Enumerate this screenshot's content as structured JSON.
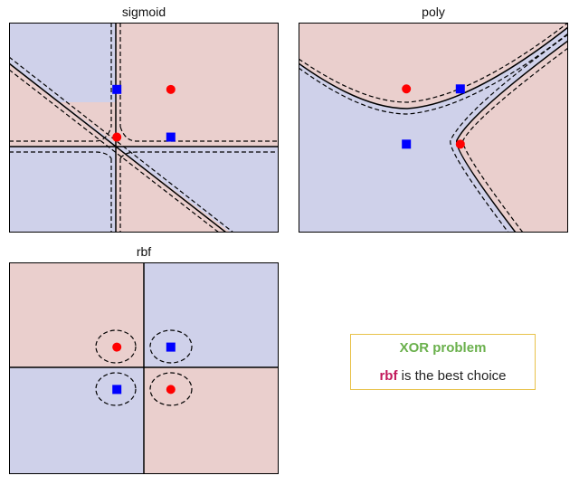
{
  "chart_data": [
    {
      "type": "scatter",
      "title": "sigmoid",
      "kernel": "sigmoid",
      "xlim": [
        -1,
        1.5
      ],
      "ylim": [
        -1,
        1.2
      ],
      "series": [
        {
          "marker": "circle",
          "color": "#ff0000",
          "points": [
            [
              0,
              0
            ],
            [
              0.5,
              0.5
            ]
          ]
        },
        {
          "marker": "square",
          "color": "#0000ff",
          "points": [
            [
              0,
              0.5
            ],
            [
              0.5,
              0
            ]
          ]
        }
      ],
      "region_colors": {
        "positive": "#eacfcd",
        "negative": "#cfd1ea"
      },
      "boundary": "solid",
      "margins": "dashed"
    },
    {
      "type": "scatter",
      "title": "poly",
      "kernel": "poly",
      "xlim": [
        -1,
        1.5
      ],
      "ylim": [
        -0.8,
        1.1
      ],
      "series": [
        {
          "marker": "circle",
          "color": "#ff0000",
          "points": [
            [
              0,
              0.5
            ],
            [
              0.5,
              0
            ]
          ]
        },
        {
          "marker": "square",
          "color": "#0000ff",
          "points": [
            [
              0,
              0
            ],
            [
              0.5,
              0.5
            ]
          ]
        }
      ],
      "region_colors": {
        "positive": "#eacfcd",
        "negative": "#cfd1ea"
      },
      "boundary": "solid",
      "margins": "dashed"
    },
    {
      "type": "scatter",
      "title": "rbf",
      "kernel": "rbf",
      "xlim": [
        -1,
        1.5
      ],
      "ylim": [
        -1,
        1.5
      ],
      "series": [
        {
          "marker": "circle",
          "color": "#ff0000",
          "points": [
            [
              0,
              0.5
            ],
            [
              0.5,
              0
            ]
          ]
        },
        {
          "marker": "square",
          "color": "#0000ff",
          "points": [
            [
              0,
              0
            ],
            [
              0.5,
              0.5
            ]
          ]
        }
      ],
      "region_colors": {
        "positive": "#eacfcd",
        "negative": "#cfd1ea"
      },
      "boundary": "solid",
      "margins": "dashed"
    }
  ],
  "note": {
    "title": "XOR problem",
    "keyword": "rbf",
    "rest": " is the best choice"
  }
}
